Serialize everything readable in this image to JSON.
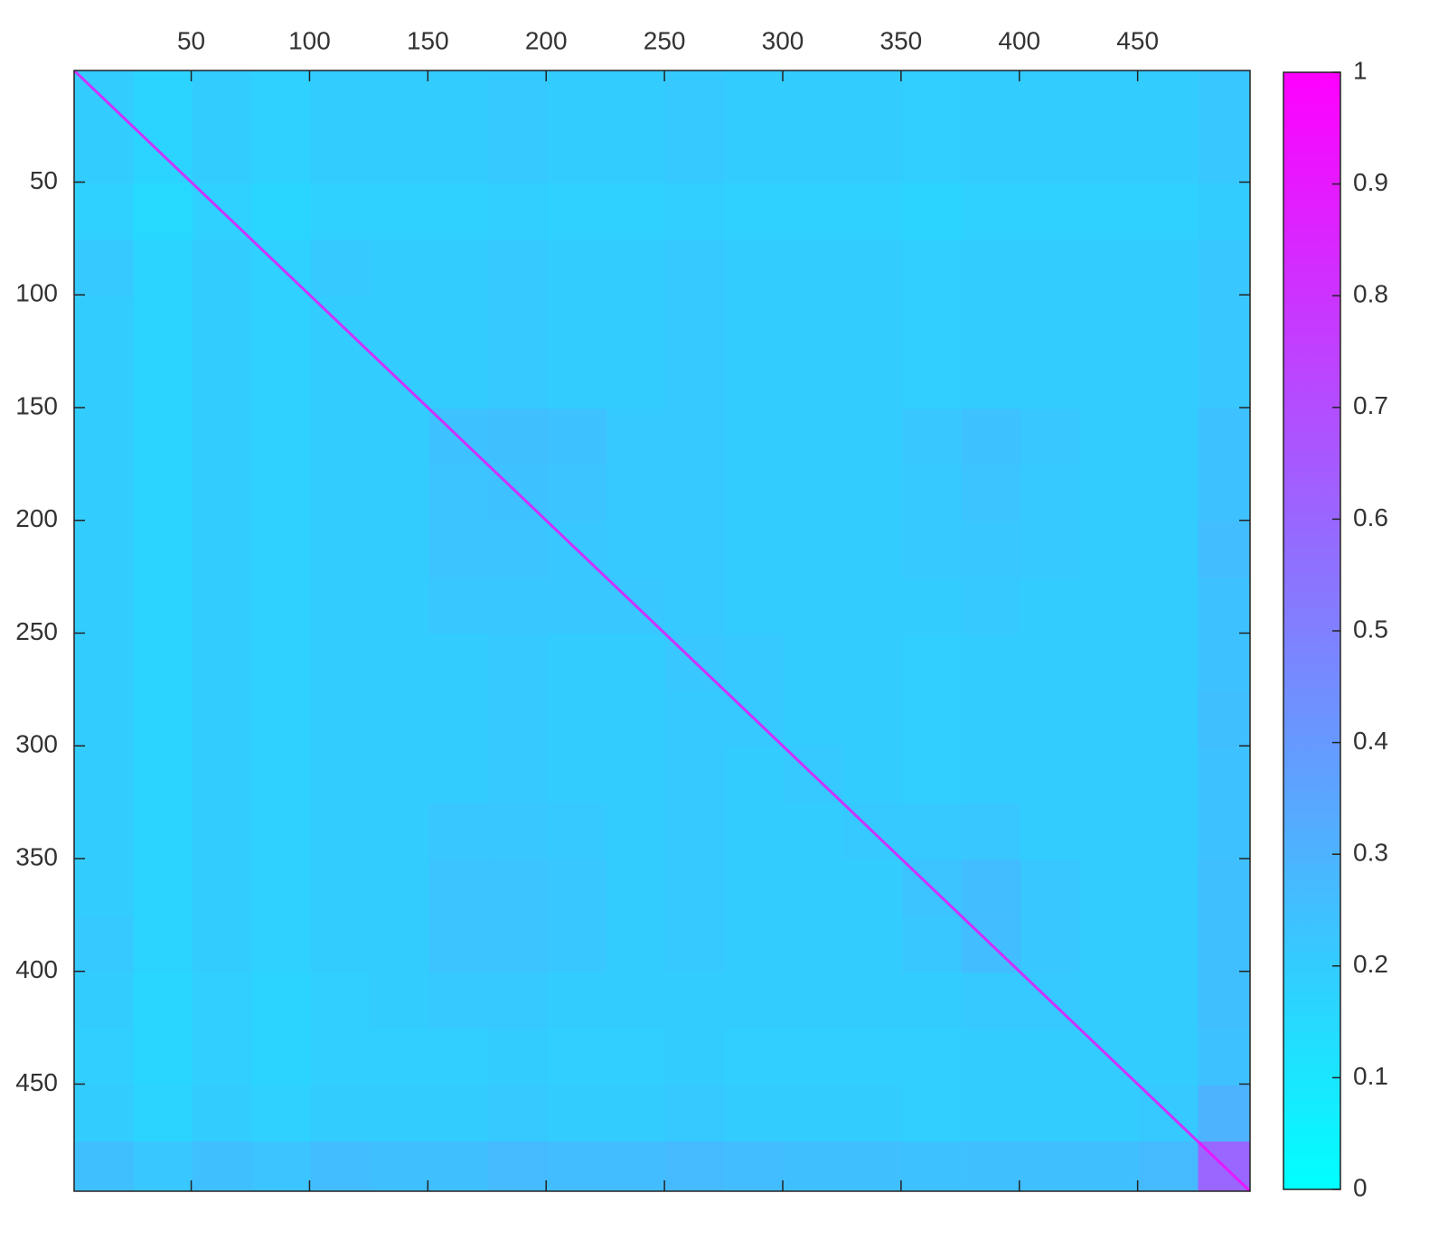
{
  "chart_data": {
    "type": "heatmap",
    "colormap": "cool",
    "xbins": [
      0.5,
      25.5,
      50.5,
      75.5,
      100.5,
      125.5,
      150.5,
      175.5,
      200.5,
      225.5,
      250.5,
      275.5,
      300.5,
      325.5,
      350.5,
      375.5,
      400.5,
      425.5,
      450.5,
      475.5,
      497.5
    ],
    "ybins": [
      0.5,
      25.5,
      50.5,
      75.5,
      100.5,
      125.5,
      150.5,
      175.5,
      200.5,
      225.5,
      250.5,
      275.5,
      300.5,
      325.5,
      350.5,
      375.5,
      400.5,
      425.5,
      450.5,
      475.5,
      497.5
    ],
    "z": [
      [
        0.2,
        0.17,
        0.2,
        0.18,
        0.2,
        0.2,
        0.2,
        0.21,
        0.2,
        0.2,
        0.21,
        0.2,
        0.2,
        0.2,
        0.19,
        0.2,
        0.2,
        0.2,
        0.2,
        0.22
      ],
      [
        0.2,
        0.17,
        0.2,
        0.18,
        0.2,
        0.2,
        0.2,
        0.21,
        0.2,
        0.2,
        0.21,
        0.2,
        0.2,
        0.2,
        0.19,
        0.2,
        0.2,
        0.2,
        0.2,
        0.22
      ],
      [
        0.18,
        0.15,
        0.18,
        0.16,
        0.18,
        0.18,
        0.18,
        0.19,
        0.18,
        0.18,
        0.19,
        0.18,
        0.18,
        0.18,
        0.17,
        0.18,
        0.18,
        0.18,
        0.18,
        0.2
      ],
      [
        0.21,
        0.17,
        0.2,
        0.18,
        0.21,
        0.2,
        0.2,
        0.21,
        0.2,
        0.2,
        0.21,
        0.2,
        0.2,
        0.2,
        0.19,
        0.2,
        0.2,
        0.2,
        0.2,
        0.22
      ],
      [
        0.2,
        0.17,
        0.2,
        0.18,
        0.2,
        0.2,
        0.2,
        0.21,
        0.2,
        0.2,
        0.21,
        0.2,
        0.2,
        0.2,
        0.19,
        0.2,
        0.2,
        0.2,
        0.2,
        0.22
      ],
      [
        0.2,
        0.17,
        0.2,
        0.18,
        0.2,
        0.2,
        0.2,
        0.21,
        0.2,
        0.2,
        0.21,
        0.2,
        0.2,
        0.2,
        0.19,
        0.2,
        0.2,
        0.2,
        0.2,
        0.22
      ],
      [
        0.2,
        0.17,
        0.2,
        0.18,
        0.2,
        0.2,
        0.24,
        0.25,
        0.24,
        0.21,
        0.21,
        0.2,
        0.2,
        0.2,
        0.22,
        0.24,
        0.22,
        0.2,
        0.2,
        0.24
      ],
      [
        0.2,
        0.17,
        0.2,
        0.18,
        0.2,
        0.2,
        0.23,
        0.24,
        0.23,
        0.21,
        0.21,
        0.2,
        0.2,
        0.2,
        0.21,
        0.23,
        0.21,
        0.2,
        0.2,
        0.24
      ],
      [
        0.2,
        0.17,
        0.2,
        0.18,
        0.2,
        0.2,
        0.23,
        0.23,
        0.22,
        0.21,
        0.21,
        0.2,
        0.2,
        0.2,
        0.21,
        0.22,
        0.21,
        0.2,
        0.2,
        0.26
      ],
      [
        0.2,
        0.17,
        0.2,
        0.18,
        0.2,
        0.2,
        0.22,
        0.22,
        0.22,
        0.22,
        0.21,
        0.2,
        0.2,
        0.2,
        0.2,
        0.21,
        0.2,
        0.2,
        0.2,
        0.24
      ],
      [
        0.2,
        0.17,
        0.2,
        0.18,
        0.2,
        0.2,
        0.2,
        0.21,
        0.2,
        0.2,
        0.22,
        0.21,
        0.2,
        0.2,
        0.19,
        0.2,
        0.2,
        0.2,
        0.2,
        0.24
      ],
      [
        0.2,
        0.17,
        0.2,
        0.18,
        0.2,
        0.2,
        0.2,
        0.21,
        0.2,
        0.2,
        0.21,
        0.21,
        0.2,
        0.2,
        0.19,
        0.2,
        0.2,
        0.2,
        0.2,
        0.25
      ],
      [
        0.2,
        0.17,
        0.2,
        0.18,
        0.2,
        0.2,
        0.2,
        0.21,
        0.2,
        0.2,
        0.21,
        0.2,
        0.21,
        0.2,
        0.19,
        0.2,
        0.2,
        0.2,
        0.2,
        0.24
      ],
      [
        0.2,
        0.17,
        0.2,
        0.18,
        0.2,
        0.2,
        0.22,
        0.22,
        0.21,
        0.2,
        0.21,
        0.2,
        0.2,
        0.21,
        0.21,
        0.22,
        0.2,
        0.2,
        0.2,
        0.24
      ],
      [
        0.2,
        0.17,
        0.2,
        0.18,
        0.2,
        0.2,
        0.23,
        0.23,
        0.22,
        0.2,
        0.21,
        0.2,
        0.2,
        0.2,
        0.23,
        0.26,
        0.22,
        0.2,
        0.2,
        0.25
      ],
      [
        0.21,
        0.17,
        0.2,
        0.18,
        0.2,
        0.2,
        0.23,
        0.23,
        0.22,
        0.2,
        0.21,
        0.2,
        0.2,
        0.2,
        0.22,
        0.26,
        0.22,
        0.2,
        0.2,
        0.25
      ],
      [
        0.2,
        0.16,
        0.19,
        0.17,
        0.19,
        0.2,
        0.21,
        0.21,
        0.2,
        0.2,
        0.2,
        0.2,
        0.2,
        0.2,
        0.2,
        0.21,
        0.21,
        0.2,
        0.2,
        0.25
      ],
      [
        0.19,
        0.16,
        0.19,
        0.17,
        0.19,
        0.19,
        0.19,
        0.2,
        0.19,
        0.19,
        0.2,
        0.19,
        0.19,
        0.19,
        0.19,
        0.2,
        0.2,
        0.2,
        0.2,
        0.24
      ],
      [
        0.2,
        0.17,
        0.2,
        0.18,
        0.2,
        0.2,
        0.2,
        0.21,
        0.2,
        0.2,
        0.21,
        0.2,
        0.2,
        0.2,
        0.19,
        0.2,
        0.2,
        0.2,
        0.21,
        0.3
      ],
      [
        0.25,
        0.22,
        0.25,
        0.23,
        0.26,
        0.25,
        0.25,
        0.27,
        0.26,
        0.26,
        0.27,
        0.26,
        0.25,
        0.25,
        0.24,
        0.25,
        0.25,
        0.25,
        0.27,
        0.6
      ]
    ],
    "diagonal": 1,
    "xlim": [
      0.5,
      497.5
    ],
    "ylim": [
      0.5,
      497.5
    ],
    "y_reversed": true,
    "xticks": [
      50,
      100,
      150,
      200,
      250,
      300,
      350,
      400,
      450
    ],
    "yticks": [
      50,
      100,
      150,
      200,
      250,
      300,
      350,
      400,
      450
    ],
    "clim": [
      0,
      1
    ],
    "cticks": [
      0,
      0.1,
      0.2,
      0.3,
      0.4,
      0.5,
      0.6,
      0.7,
      0.8,
      0.9,
      1
    ]
  }
}
